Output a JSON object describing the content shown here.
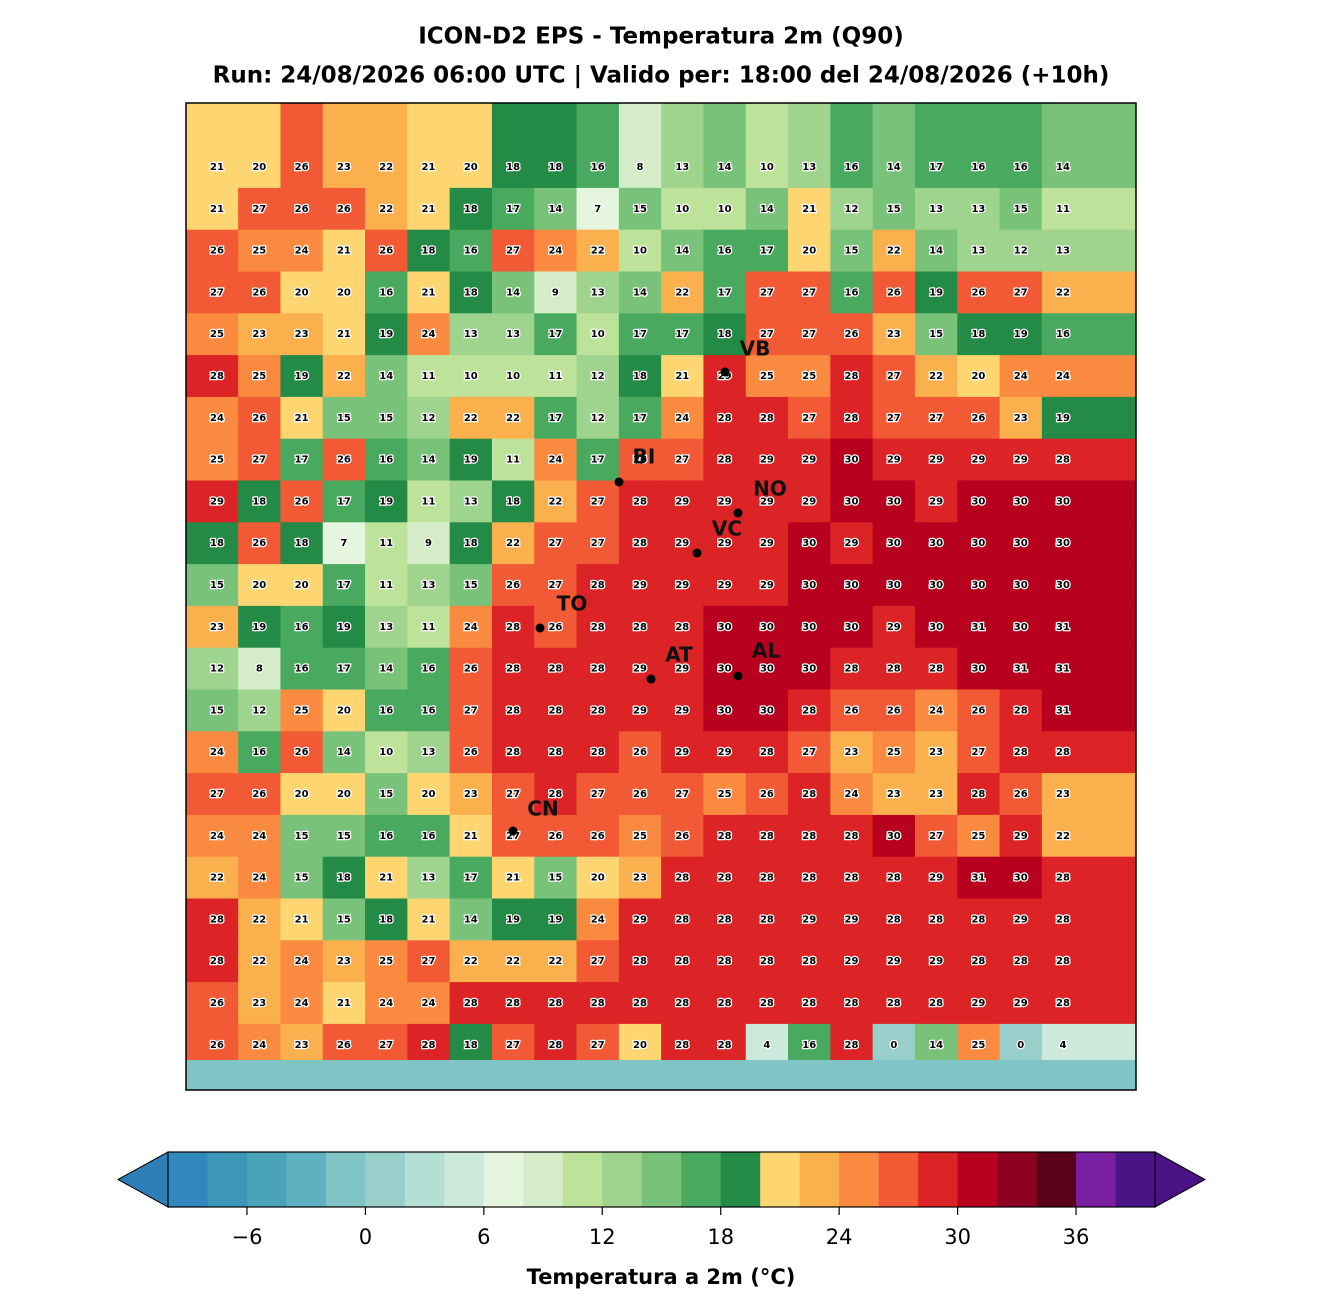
{
  "chart_data": {
    "type": "gridmap",
    "title": "ICON-D2 EPS - Temperatura 2m (Q90)",
    "subtitle": "Run: 24/08/2026 06:00 UTC | Valido per: 18:00 del 24/08/2026 (+10h)",
    "grid_values": [
      [
        21,
        20,
        26,
        23,
        22,
        21,
        20,
        18,
        18,
        16,
        8,
        13,
        14,
        10,
        13,
        16,
        14,
        17,
        16,
        16,
        14
      ],
      [
        21,
        27,
        26,
        26,
        22,
        21,
        18,
        17,
        14,
        7,
        15,
        10,
        10,
        14,
        21,
        12,
        15,
        13,
        13,
        15,
        11
      ],
      [
        26,
        25,
        24,
        21,
        26,
        18,
        16,
        27,
        24,
        22,
        10,
        14,
        16,
        17,
        20,
        15,
        22,
        14,
        13,
        12,
        13
      ],
      [
        27,
        26,
        20,
        20,
        16,
        21,
        18,
        14,
        9,
        13,
        14,
        22,
        17,
        27,
        27,
        16,
        26,
        19,
        26,
        27,
        22
      ],
      [
        25,
        23,
        23,
        21,
        19,
        24,
        13,
        13,
        17,
        10,
        17,
        17,
        18,
        27,
        27,
        26,
        23,
        15,
        18,
        19,
        16
      ],
      [
        28,
        25,
        19,
        22,
        14,
        11,
        10,
        10,
        11,
        12,
        18,
        21,
        29,
        25,
        25,
        28,
        27,
        22,
        20,
        24,
        24
      ],
      [
        24,
        26,
        21,
        15,
        15,
        12,
        22,
        22,
        17,
        12,
        17,
        24,
        28,
        28,
        27,
        28,
        27,
        27,
        26,
        23,
        19
      ],
      [
        25,
        27,
        17,
        26,
        16,
        14,
        19,
        11,
        24,
        17,
        26,
        27,
        28,
        29,
        29,
        30,
        29,
        29,
        29,
        29,
        28
      ],
      [
        29,
        18,
        26,
        17,
        19,
        11,
        13,
        18,
        22,
        27,
        28,
        29,
        29,
        29,
        29,
        30,
        30,
        29,
        30,
        30,
        30
      ],
      [
        18,
        26,
        18,
        7,
        11,
        9,
        18,
        22,
        27,
        27,
        28,
        29,
        29,
        29,
        30,
        29,
        30,
        30,
        30,
        30,
        30
      ],
      [
        15,
        20,
        20,
        17,
        11,
        13,
        15,
        26,
        27,
        28,
        29,
        29,
        29,
        29,
        30,
        30,
        30,
        30,
        30,
        30,
        30
      ],
      [
        23,
        19,
        16,
        19,
        13,
        11,
        24,
        28,
        26,
        28,
        28,
        28,
        30,
        30,
        30,
        30,
        29,
        30,
        31,
        30,
        31
      ],
      [
        12,
        8,
        16,
        17,
        14,
        16,
        26,
        28,
        28,
        28,
        29,
        29,
        30,
        30,
        30,
        28,
        28,
        28,
        30,
        31,
        31
      ],
      [
        15,
        12,
        25,
        20,
        16,
        16,
        27,
        28,
        28,
        28,
        29,
        29,
        30,
        30,
        28,
        26,
        26,
        24,
        26,
        28,
        31
      ],
      [
        24,
        16,
        26,
        14,
        10,
        13,
        26,
        28,
        28,
        28,
        26,
        29,
        29,
        28,
        27,
        23,
        25,
        23,
        27,
        28,
        28
      ],
      [
        27,
        26,
        20,
        20,
        15,
        20,
        23,
        27,
        28,
        27,
        26,
        27,
        25,
        26,
        28,
        24,
        23,
        23,
        28,
        26,
        23
      ],
      [
        24,
        24,
        15,
        15,
        16,
        16,
        21,
        27,
        26,
        26,
        25,
        26,
        28,
        28,
        28,
        28,
        30,
        27,
        25,
        29,
        22
      ],
      [
        22,
        24,
        15,
        18,
        21,
        13,
        17,
        21,
        15,
        20,
        23,
        28,
        28,
        28,
        28,
        28,
        28,
        29,
        31,
        30,
        28
      ],
      [
        28,
        22,
        21,
        15,
        18,
        21,
        14,
        19,
        19,
        24,
        29,
        28,
        28,
        28,
        29,
        29,
        28,
        28,
        28,
        29,
        28
      ],
      [
        28,
        22,
        24,
        23,
        25,
        27,
        22,
        22,
        22,
        27,
        28,
        28,
        28,
        28,
        28,
        29,
        29,
        29,
        28,
        28,
        28
      ],
      [
        26,
        23,
        24,
        21,
        24,
        24,
        28,
        28,
        28,
        28,
        28,
        28,
        28,
        28,
        28,
        28,
        28,
        28,
        29,
        29,
        28
      ],
      [
        26,
        24,
        23,
        26,
        27,
        28,
        18,
        27,
        28,
        27,
        20,
        28,
        28,
        4,
        16,
        28,
        0,
        14,
        25,
        0,
        4
      ]
    ],
    "cities": [
      "VB",
      "BI",
      "NO",
      "VC",
      "TO",
      "AT",
      "AL",
      "CN"
    ],
    "colorbar": {
      "clim": [
        -10,
        40
      ],
      "colors": [
        "#3288bd",
        "#3b96b8",
        "#4aa3b8",
        "#5fb0c0",
        "#80c4c6",
        "#98cfcb",
        "#b3dfd5",
        "#cde9dc",
        "#e6f5de",
        "#d4edc8",
        "#bde39a",
        "#9fd48f",
        "#78c27a",
        "#48a95f",
        "#238b45",
        "#fdd672",
        "#fbb04e",
        "#f98a40",
        "#f15a35",
        "#dc2325",
        "#b8001f",
        "#8c0020",
        "#5a0018",
        "#7a1fa2",
        "#4a1486"
      ],
      "under_color": "#2e7fb8",
      "over_color": "#4a1486",
      "ticks": [
        {
          "value": -6,
          "label": "−6"
        },
        0,
        6,
        12,
        18,
        24,
        30,
        36
      ],
      "label": "Temperatura a 2m (°C)"
    }
  }
}
